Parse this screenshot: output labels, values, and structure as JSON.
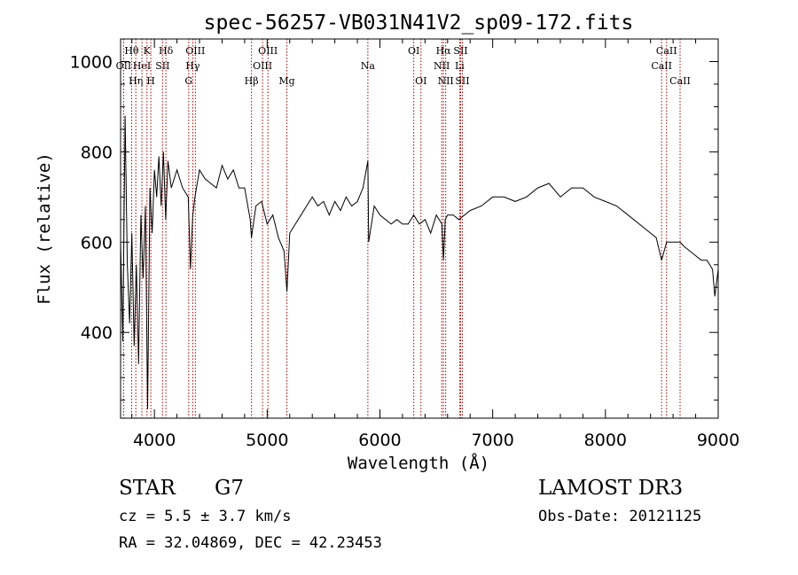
{
  "chart_data": {
    "type": "line",
    "title": "spec-56257-VB031N41V2_sp09-172.fits",
    "xlabel": "Wavelength (Å)",
    "ylabel": "Flux (relative)",
    "xlim": [
      3700,
      9000
    ],
    "ylim": [
      210,
      1050
    ],
    "x_ticks": [
      4000,
      5000,
      6000,
      7000,
      8000,
      9000
    ],
    "y_ticks": [
      400,
      600,
      800,
      1000
    ],
    "grid": false,
    "series": [
      {
        "name": "spectrum",
        "color": "#000000",
        "x": [
          3700,
          3720,
          3740,
          3760,
          3780,
          3800,
          3820,
          3840,
          3860,
          3880,
          3900,
          3920,
          3940,
          3960,
          3980,
          4000,
          4020,
          4040,
          4060,
          4080,
          4100,
          4120,
          4150,
          4200,
          4250,
          4300,
          4320,
          4340,
          4360,
          4400,
          4450,
          4500,
          4550,
          4600,
          4650,
          4700,
          4750,
          4800,
          4850,
          4861,
          4900,
          4950,
          5000,
          5050,
          5100,
          5150,
          5175,
          5200,
          5250,
          5300,
          5350,
          5400,
          5450,
          5500,
          5550,
          5600,
          5650,
          5700,
          5750,
          5800,
          5850,
          5893,
          5900,
          5950,
          6000,
          6050,
          6100,
          6150,
          6200,
          6250,
          6300,
          6350,
          6400,
          6450,
          6500,
          6550,
          6563,
          6580,
          6600,
          6650,
          6700,
          6750,
          6800,
          6900,
          7000,
          7100,
          7200,
          7300,
          7400,
          7500,
          7600,
          7700,
          7800,
          7900,
          8000,
          8100,
          8200,
          8300,
          8400,
          8450,
          8498,
          8542,
          8600,
          8662,
          8700,
          8750,
          8800,
          8850,
          8900,
          8950,
          8970,
          9000
        ],
        "y": [
          600,
          380,
          880,
          550,
          420,
          620,
          370,
          550,
          330,
          660,
          520,
          680,
          230,
          720,
          620,
          760,
          700,
          790,
          680,
          800,
          650,
          780,
          720,
          760,
          720,
          700,
          540,
          660,
          700,
          760,
          740,
          730,
          720,
          770,
          740,
          760,
          720,
          720,
          650,
          610,
          680,
          690,
          640,
          660,
          610,
          580,
          490,
          620,
          640,
          660,
          680,
          700,
          680,
          690,
          660,
          690,
          670,
          700,
          680,
          690,
          720,
          780,
          600,
          680,
          660,
          650,
          640,
          650,
          640,
          640,
          660,
          640,
          650,
          620,
          660,
          640,
          560,
          650,
          660,
          660,
          650,
          660,
          670,
          680,
          700,
          700,
          690,
          700,
          720,
          730,
          700,
          720,
          720,
          700,
          690,
          680,
          660,
          640,
          620,
          610,
          560,
          600,
          600,
          600,
          590,
          580,
          570,
          560,
          560,
          540,
          480,
          540
        ]
      }
    ],
    "line_markers": [
      {
        "label": "OII",
        "x": 3727,
        "row": 2
      },
      {
        "label": "Hθ",
        "x": 3798,
        "row": 1
      },
      {
        "label": "Hη",
        "x": 3835,
        "row": 3
      },
      {
        "label": "HeI",
        "x": 3889,
        "row": 2
      },
      {
        "label": "K",
        "x": 3934,
        "row": 1
      },
      {
        "label": "H",
        "x": 3968,
        "row": 3
      },
      {
        "label": "SII",
        "x": 4072,
        "row": 2
      },
      {
        "label": "Hδ",
        "x": 4102,
        "row": 1
      },
      {
        "label": "G",
        "x": 4304,
        "row": 3
      },
      {
        "label": "Hγ",
        "x": 4340,
        "row": 2
      },
      {
        "label": "OIII",
        "x": 4363,
        "row": 1
      },
      {
        "label": "Hβ",
        "x": 4861,
        "row": 3
      },
      {
        "label": "OIII",
        "x": 4959,
        "row": 2
      },
      {
        "label": "OIII",
        "x": 5007,
        "row": 1
      },
      {
        "label": "Mg",
        "x": 5175,
        "row": 3
      },
      {
        "label": "Na",
        "x": 5893,
        "row": 2
      },
      {
        "label": "OI",
        "x": 6300,
        "row": 1
      },
      {
        "label": "OI",
        "x": 6364,
        "row": 3
      },
      {
        "label": "NII",
        "x": 6548,
        "row": 2
      },
      {
        "label": "Hα",
        "x": 6563,
        "row": 1
      },
      {
        "label": "NII",
        "x": 6583,
        "row": 3
      },
      {
        "label": "Li",
        "x": 6707,
        "row": 2
      },
      {
        "label": "SII",
        "x": 6716,
        "row": 1
      },
      {
        "label": "SII",
        "x": 6731,
        "row": 3
      },
      {
        "label": "CaII",
        "x": 8498,
        "row": 2
      },
      {
        "label": "CaII",
        "x": 8542,
        "row": 1
      },
      {
        "label": "CaII",
        "x": 8662,
        "row": 3
      }
    ],
    "marker_color": "#aa0000"
  },
  "info": {
    "object_class": "STAR",
    "subclass": "G7",
    "survey": "LAMOST DR3",
    "redshift": "cz =  5.5 ± 3.7 km/s",
    "obs_date": "Obs-Date: 20121125",
    "coords": "RA =  32.04869, DEC =  42.23453"
  }
}
